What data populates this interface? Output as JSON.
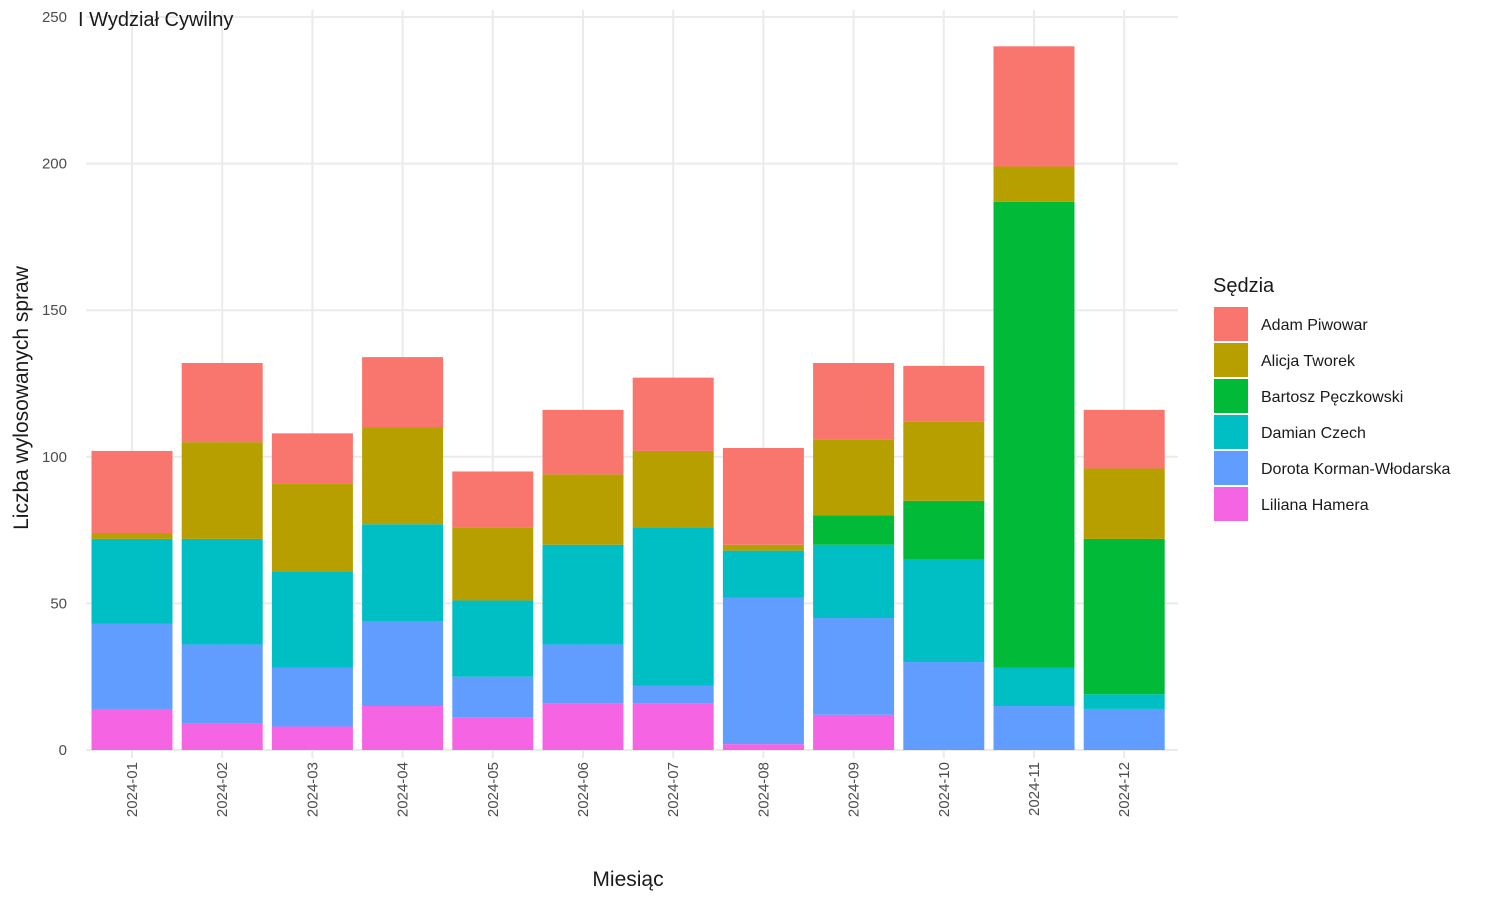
{
  "chart_data": {
    "type": "bar",
    "stacked": true,
    "panel_label": "I Wydział Cywilny",
    "xlabel": "Miesiąc",
    "ylabel": "Liczba wylosowanych spraw",
    "ylim": [
      0,
      250
    ],
    "y_ticks": [
      0,
      50,
      100,
      150,
      200,
      250
    ],
    "grid": true,
    "legend_title": "Sędzia",
    "legend_position": "right",
    "categories": [
      "2024-01",
      "2024-02",
      "2024-03",
      "2024-04",
      "2024-05",
      "2024-06",
      "2024-07",
      "2024-08",
      "2024-09",
      "2024-10",
      "2024-11",
      "2024-12"
    ],
    "series": [
      {
        "name": "Adam Piwowar",
        "color": "#F8766D",
        "values": [
          28,
          27,
          17,
          24,
          19,
          22,
          25,
          33,
          26,
          19,
          41,
          20
        ]
      },
      {
        "name": "Alicja Tworek",
        "color": "#B79F00",
        "values": [
          2,
          33,
          30,
          33,
          25,
          24,
          26,
          2,
          26,
          27,
          12,
          24
        ]
      },
      {
        "name": "Bartosz Pęczkowski",
        "color": "#00BA38",
        "values": [
          0,
          0,
          0,
          0,
          0,
          0,
          0,
          0,
          10,
          20,
          159,
          53
        ]
      },
      {
        "name": "Damian Czech",
        "color": "#00BFC4",
        "values": [
          29,
          36,
          33,
          33,
          26,
          34,
          54,
          16,
          25,
          35,
          13,
          5
        ]
      },
      {
        "name": "Dorota Korman-Włodarska",
        "color": "#619CFF",
        "values": [
          29,
          27,
          20,
          29,
          14,
          20,
          6,
          50,
          33,
          30,
          15,
          14
        ]
      },
      {
        "name": "Liliana Hamera",
        "color": "#F564E3",
        "values": [
          14,
          9,
          8,
          15,
          11,
          16,
          16,
          2,
          12,
          0,
          0,
          0
        ]
      }
    ]
  }
}
